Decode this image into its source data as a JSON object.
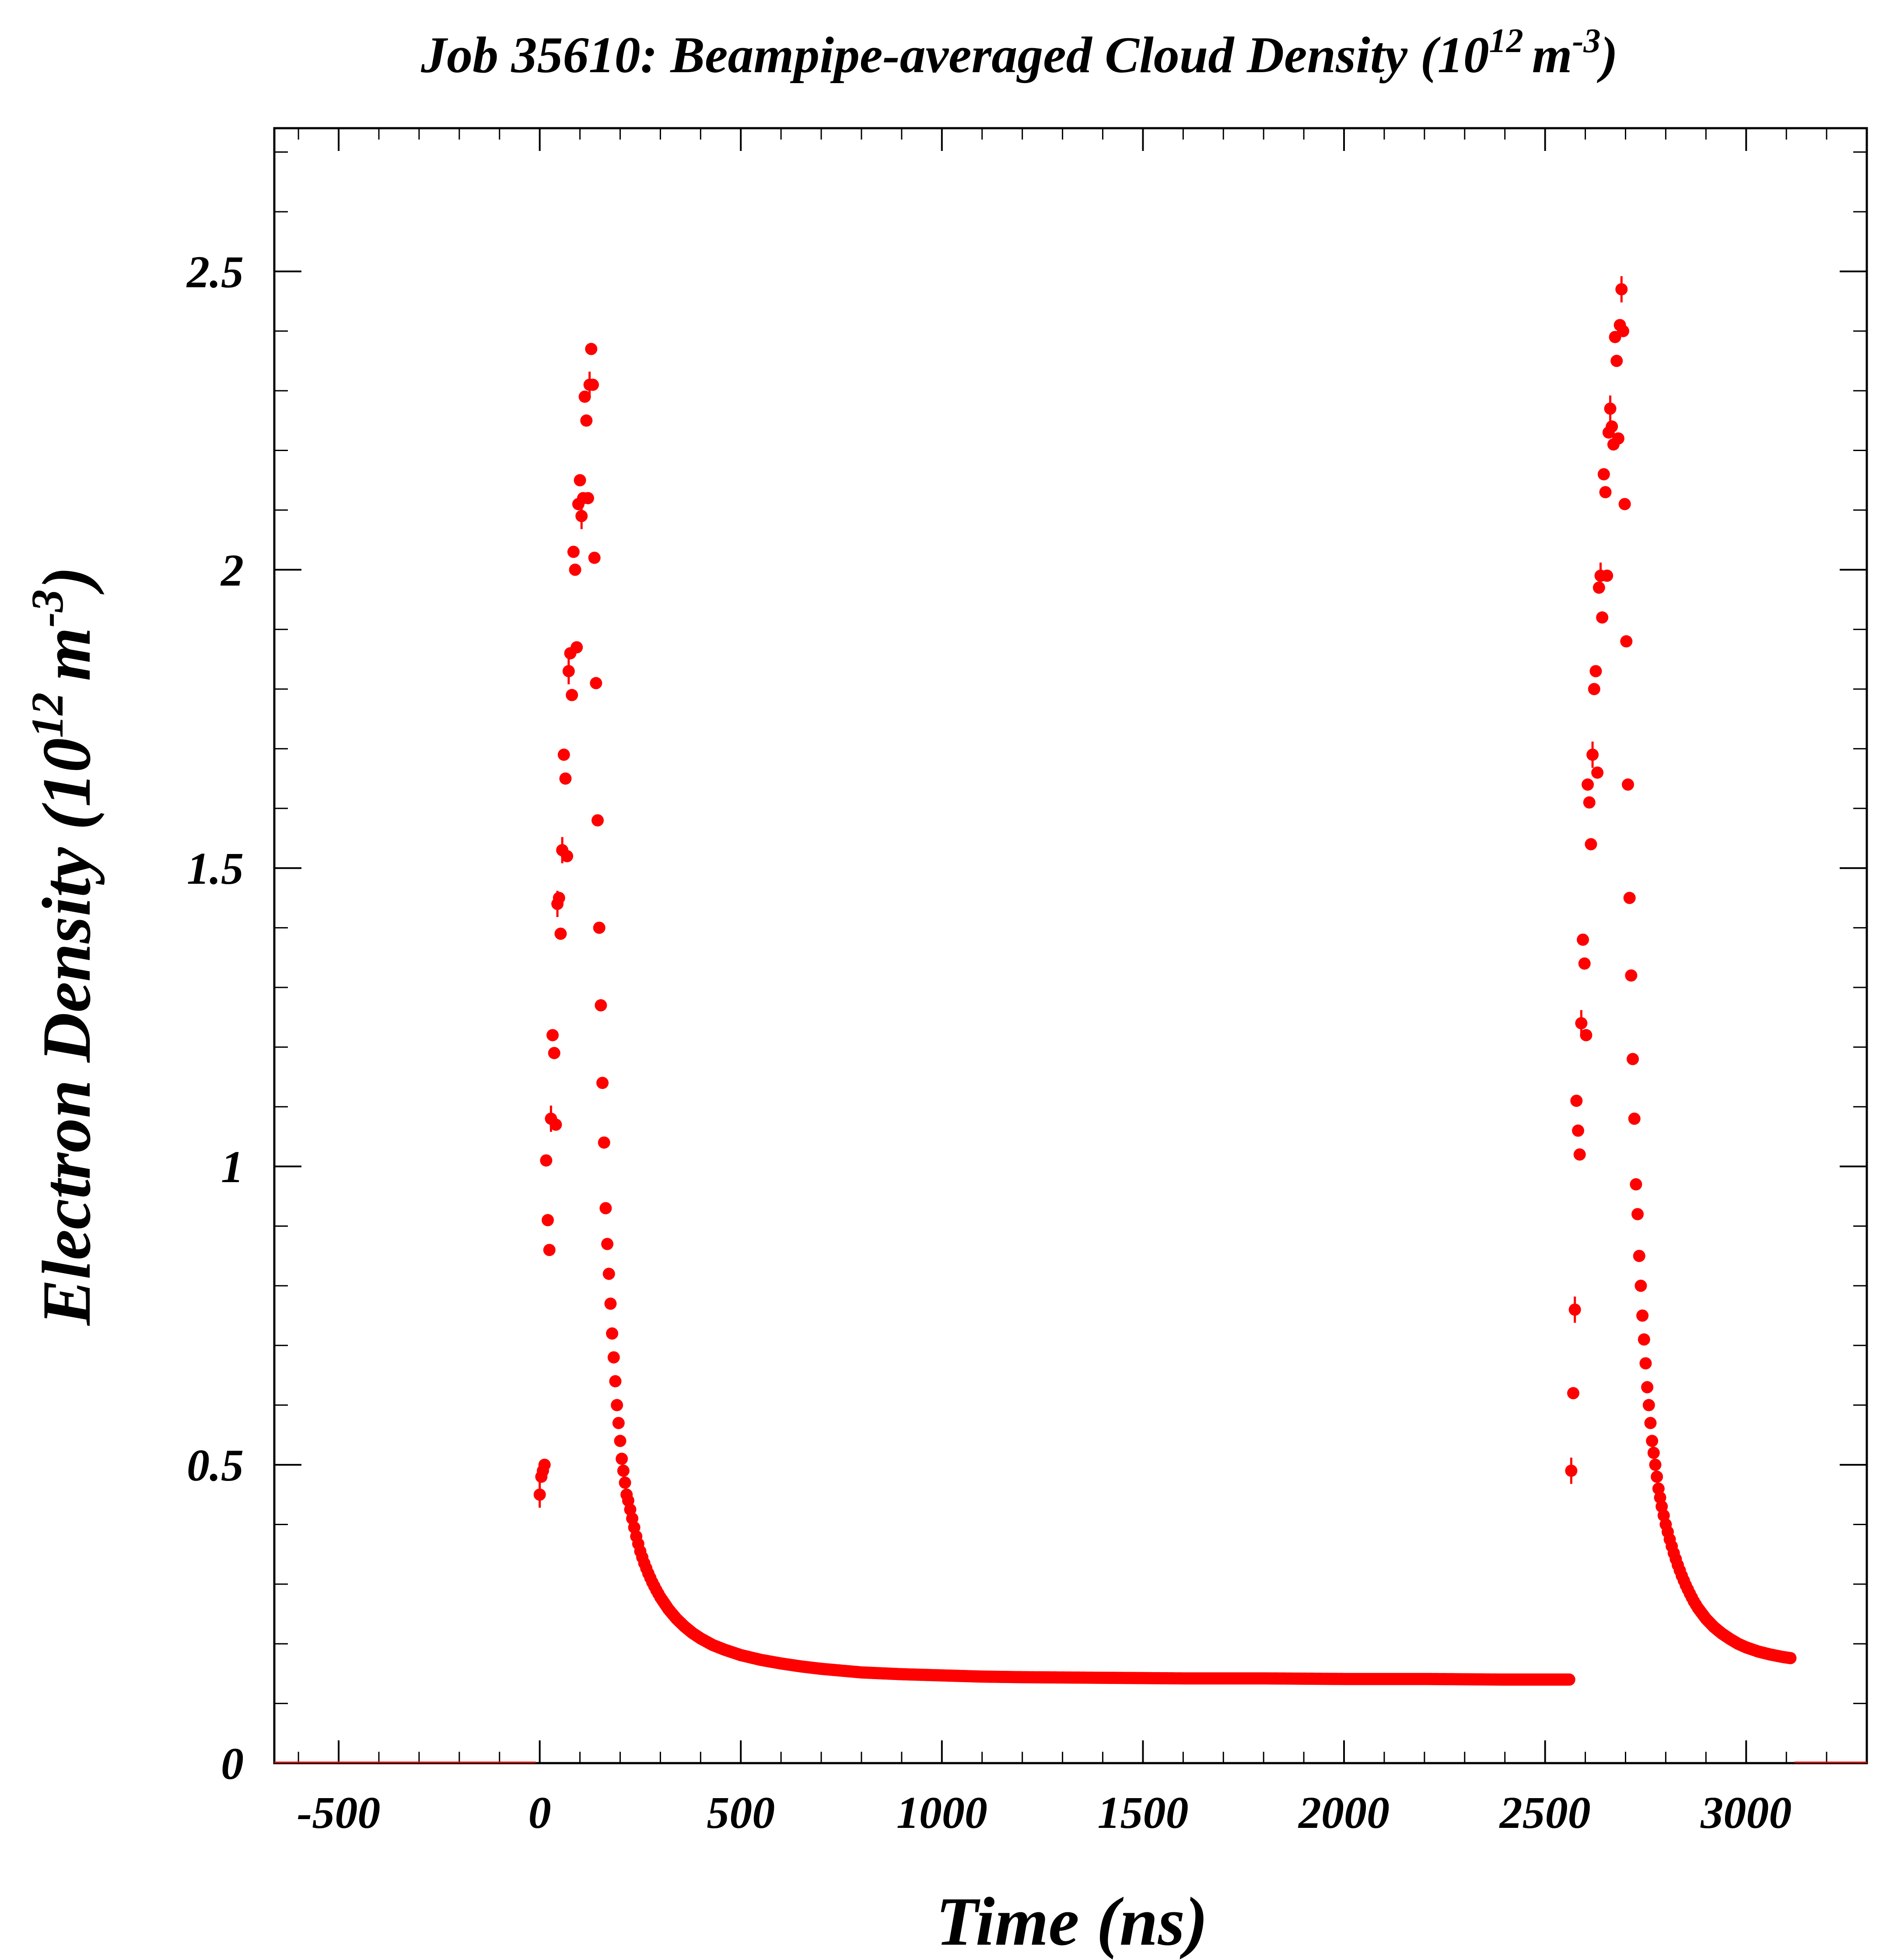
{
  "chart_data": {
    "type": "scatter",
    "title": "Job 35610: Beampipe-averaged Cloud Density (10",
    "title_exp": "12",
    "title_unit": "m",
    "title_unit_exp": "-3",
    "title_close": ")",
    "xlabel": "Time (ns)",
    "ylabel": "Electron Density (10",
    "ylabel_exp": "12",
    "ylabel_unit": "m",
    "ylabel_unit_exp": "-3",
    "ylabel_close": ")",
    "xlim": [
      -660,
      3300
    ],
    "ylim": [
      0,
      2.74
    ],
    "x_ticks": [
      -500,
      0,
      500,
      1000,
      1500,
      2000,
      2500,
      3000
    ],
    "x_tick_labels": [
      "-500",
      "0",
      "500",
      "1000",
      "1500",
      "2000",
      "2500",
      "3000"
    ],
    "y_ticks": [
      0,
      0.5,
      1,
      1.5,
      2,
      2.5
    ],
    "y_tick_labels": [
      "0",
      "0.5",
      "1",
      "1.5",
      "2",
      "2.5"
    ],
    "grid": false,
    "legend": "none",
    "marker_color": "#ff0000",
    "series": [
      {
        "values_note": "",
        "points": [
          [
            0,
            0.45
          ],
          [
            4,
            0.48
          ],
          [
            8,
            0.49
          ],
          [
            12,
            0.5
          ],
          [
            16,
            1.01
          ],
          [
            20,
            0.91
          ],
          [
            24,
            0.86
          ],
          [
            28,
            1.08
          ],
          [
            32,
            1.22
          ],
          [
            36,
            1.19
          ],
          [
            40,
            1.07
          ],
          [
            44,
            1.44
          ],
          [
            48,
            1.45
          ],
          [
            52,
            1.39
          ],
          [
            56,
            1.53
          ],
          [
            60,
            1.69
          ],
          [
            64,
            1.65
          ],
          [
            68,
            1.52
          ],
          [
            72,
            1.83
          ],
          [
            76,
            1.86
          ],
          [
            80,
            1.79
          ],
          [
            84,
            2.03
          ],
          [
            88,
            2.0
          ],
          [
            92,
            1.87
          ],
          [
            96,
            2.11
          ],
          [
            100,
            2.15
          ],
          [
            104,
            2.09
          ],
          [
            108,
            2.12
          ],
          [
            112,
            2.29
          ],
          [
            116,
            2.25
          ],
          [
            120,
            2.12
          ],
          [
            124,
            2.31
          ],
          [
            128,
            2.37
          ],
          [
            132,
            2.31
          ],
          [
            136,
            2.02
          ],
          [
            140,
            1.81
          ],
          [
            144,
            1.58
          ],
          [
            148,
            1.4
          ],
          [
            152,
            1.27
          ],
          [
            156,
            1.14
          ],
          [
            160,
            1.04
          ],
          [
            164,
            0.93
          ],
          [
            168,
            0.87
          ],
          [
            172,
            0.82
          ],
          [
            176,
            0.77
          ],
          [
            180,
            0.72
          ],
          [
            184,
            0.68
          ],
          [
            188,
            0.64
          ],
          [
            192,
            0.6
          ],
          [
            196,
            0.57
          ],
          [
            200,
            0.54
          ],
          [
            204,
            0.51
          ],
          [
            208,
            0.49
          ],
          [
            212,
            0.47
          ],
          [
            216,
            0.45
          ],
          [
            220,
            0.44
          ],
          [
            230,
            0.41
          ],
          [
            240,
            0.38
          ],
          [
            250,
            0.355
          ],
          [
            260,
            0.335
          ],
          [
            270,
            0.318
          ],
          [
            280,
            0.303
          ],
          [
            290,
            0.29
          ],
          [
            300,
            0.278
          ],
          [
            320,
            0.258
          ],
          [
            340,
            0.242
          ],
          [
            360,
            0.229
          ],
          [
            380,
            0.218
          ],
          [
            400,
            0.209
          ],
          [
            430,
            0.198
          ],
          [
            460,
            0.19
          ],
          [
            500,
            0.181
          ],
          [
            550,
            0.173
          ],
          [
            600,
            0.167
          ],
          [
            650,
            0.162
          ],
          [
            700,
            0.158
          ],
          [
            750,
            0.155
          ],
          [
            800,
            0.152
          ],
          [
            900,
            0.149
          ],
          [
            1000,
            0.147
          ],
          [
            1100,
            0.145
          ],
          [
            1200,
            0.144
          ],
          [
            1400,
            0.143
          ],
          [
            1600,
            0.142
          ],
          [
            1800,
            0.142
          ],
          [
            2000,
            0.141
          ],
          [
            2200,
            0.141
          ],
          [
            2400,
            0.14
          ],
          [
            2560,
            0.14
          ],
          [
            2565,
            0.49
          ],
          [
            2570,
            0.62
          ],
          [
            2574,
            0.76
          ],
          [
            2578,
            1.11
          ],
          [
            2582,
            1.06
          ],
          [
            2586,
            1.02
          ],
          [
            2590,
            1.24
          ],
          [
            2594,
            1.38
          ],
          [
            2598,
            1.34
          ],
          [
            2602,
            1.22
          ],
          [
            2606,
            1.64
          ],
          [
            2610,
            1.61
          ],
          [
            2614,
            1.54
          ],
          [
            2618,
            1.69
          ],
          [
            2622,
            1.8
          ],
          [
            2626,
            1.83
          ],
          [
            2630,
            1.66
          ],
          [
            2634,
            1.97
          ],
          [
            2638,
            1.99
          ],
          [
            2642,
            1.92
          ],
          [
            2646,
            2.16
          ],
          [
            2650,
            2.13
          ],
          [
            2654,
            1.99
          ],
          [
            2658,
            2.23
          ],
          [
            2662,
            2.27
          ],
          [
            2666,
            2.24
          ],
          [
            2670,
            2.21
          ],
          [
            2674,
            2.39
          ],
          [
            2678,
            2.35
          ],
          [
            2682,
            2.22
          ],
          [
            2686,
            2.41
          ],
          [
            2690,
            2.47
          ],
          [
            2694,
            2.4
          ],
          [
            2698,
            2.11
          ],
          [
            2702,
            1.88
          ],
          [
            2706,
            1.64
          ],
          [
            2710,
            1.45
          ],
          [
            2714,
            1.32
          ],
          [
            2718,
            1.18
          ],
          [
            2722,
            1.08
          ],
          [
            2726,
            0.97
          ],
          [
            2730,
            0.92
          ],
          [
            2734,
            0.85
          ],
          [
            2738,
            0.8
          ],
          [
            2742,
            0.75
          ],
          [
            2746,
            0.71
          ],
          [
            2750,
            0.67
          ],
          [
            2754,
            0.63
          ],
          [
            2758,
            0.6
          ],
          [
            2762,
            0.57
          ],
          [
            2766,
            0.54
          ],
          [
            2770,
            0.52
          ],
          [
            2774,
            0.5
          ],
          [
            2778,
            0.48
          ],
          [
            2782,
            0.46
          ],
          [
            2790,
            0.43
          ],
          [
            2800,
            0.4
          ],
          [
            2810,
            0.375
          ],
          [
            2820,
            0.352
          ],
          [
            2830,
            0.332
          ],
          [
            2840,
            0.314
          ],
          [
            2850,
            0.298
          ],
          [
            2860,
            0.284
          ],
          [
            2870,
            0.271
          ],
          [
            2880,
            0.26
          ],
          [
            2900,
            0.242
          ],
          [
            2920,
            0.228
          ],
          [
            2940,
            0.217
          ],
          [
            2960,
            0.208
          ],
          [
            2980,
            0.2
          ],
          [
            3000,
            0.194
          ],
          [
            3030,
            0.187
          ],
          [
            3060,
            0.182
          ],
          [
            3090,
            0.178
          ],
          [
            3110,
            0.176
          ]
        ]
      }
    ]
  }
}
